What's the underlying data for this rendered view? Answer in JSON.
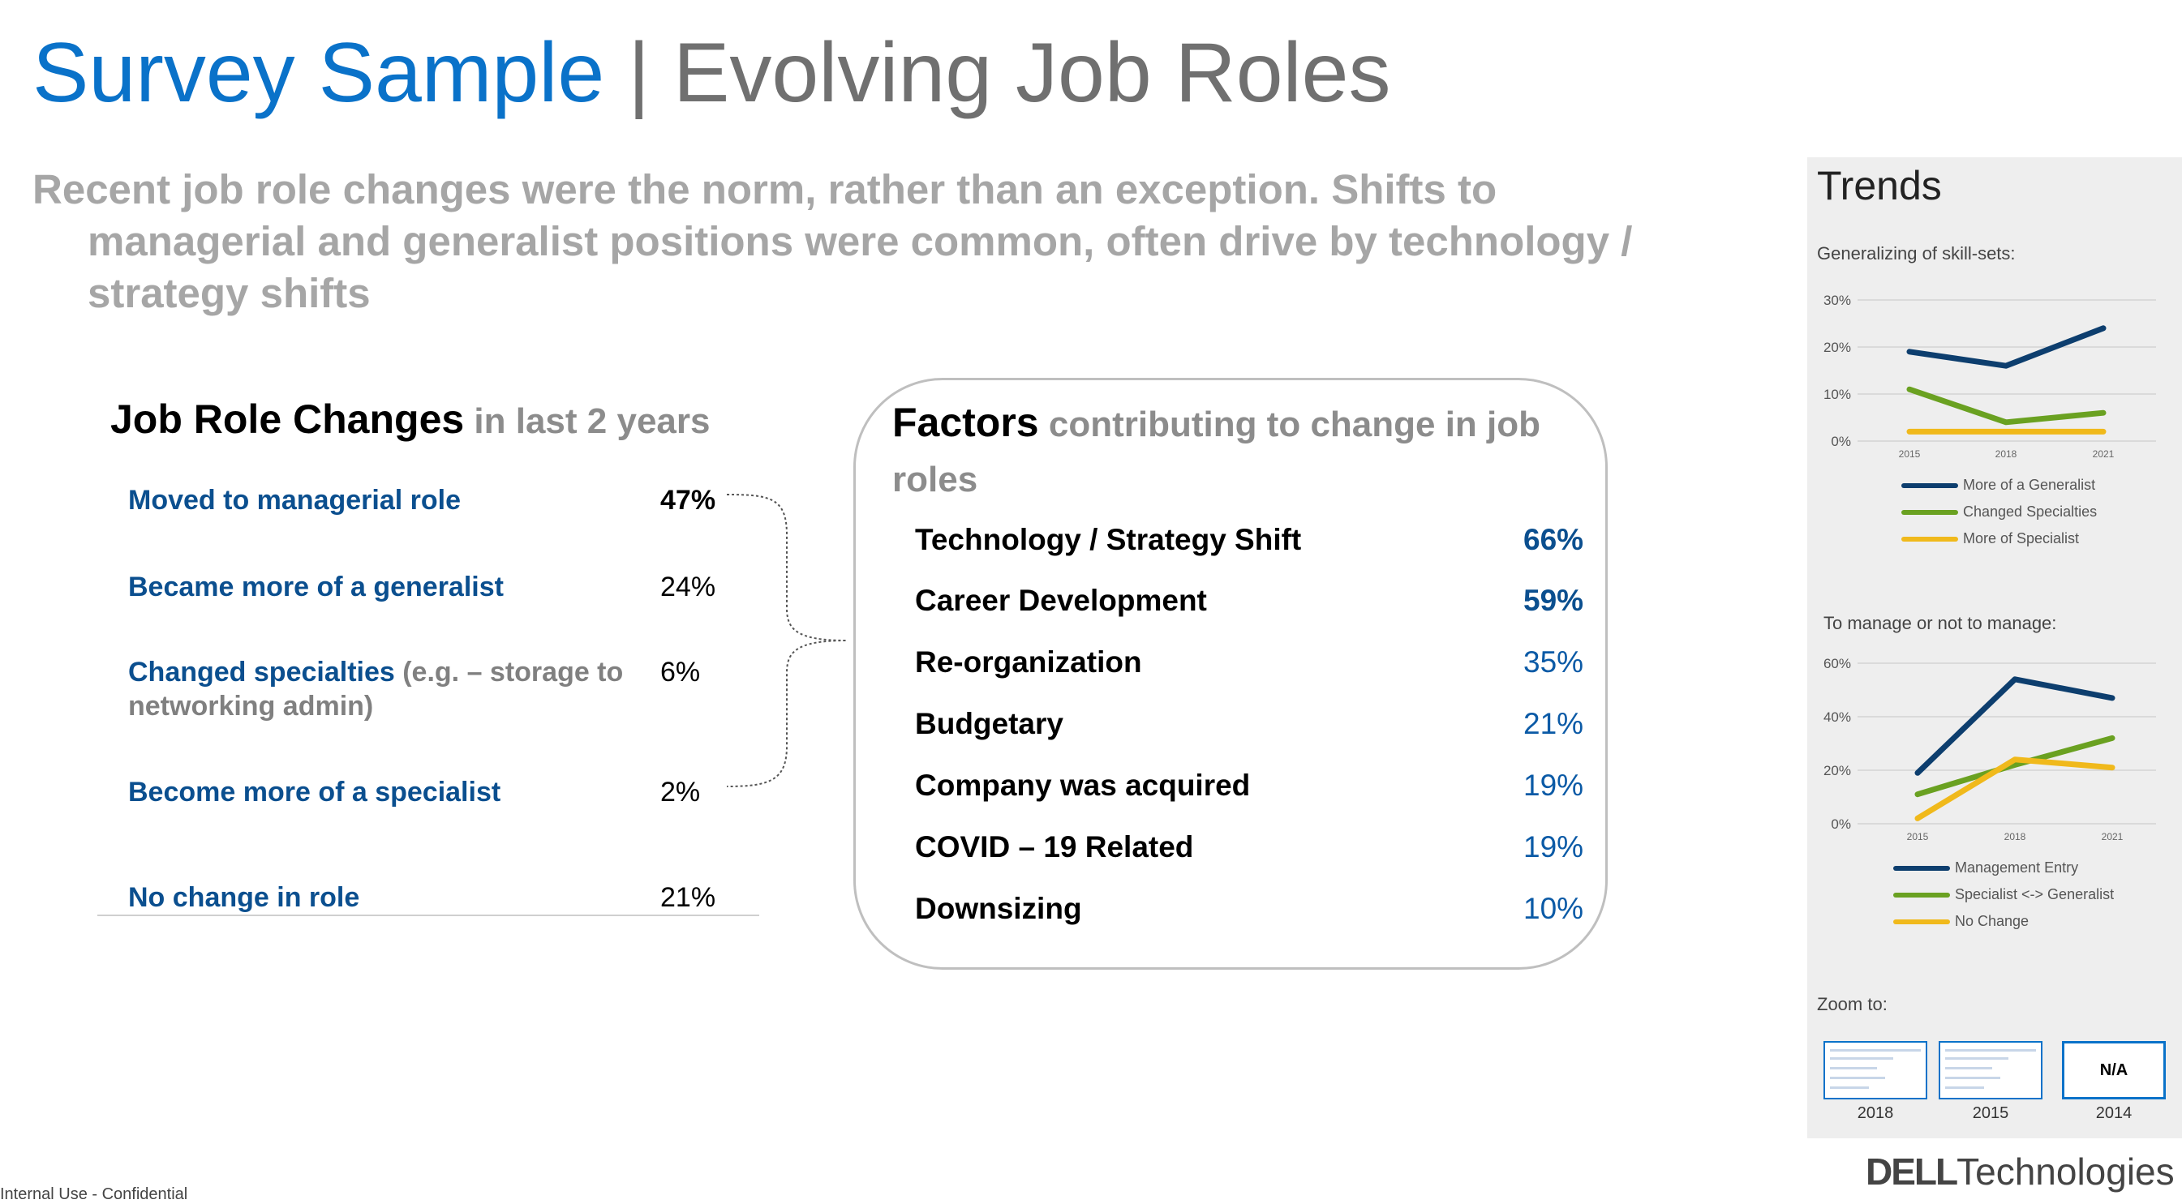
{
  "title": {
    "part1": "Survey Sample",
    "separator": " | ",
    "part2": "Evolving Job Roles"
  },
  "subtitle": {
    "line1": "Recent job role changes were the norm, rather than an exception.  Shifts to",
    "line2": "managerial and generalist positions were common, often drive by technology /",
    "line3": "strategy shifts"
  },
  "job_role_changes": {
    "heading": "Job Role Changes",
    "heading_suffix": " in last 2 years",
    "items": [
      {
        "label": "Moved to managerial role",
        "note": "",
        "value": "47%"
      },
      {
        "label": "Became more of a generalist",
        "note": "",
        "value": "24%"
      },
      {
        "label": "Changed specialties",
        "note": " (e.g. – storage to networking admin)",
        "value": "6%"
      },
      {
        "label": "Become more of a specialist",
        "note": "",
        "value": "2%"
      },
      {
        "label": "No change in role",
        "note": "",
        "value": "21%"
      }
    ]
  },
  "factors": {
    "heading": "Factors",
    "heading_suffix": " contributing to change in job roles",
    "items": [
      {
        "label": "Technology / Strategy Shift",
        "value": "66%"
      },
      {
        "label": "Career Development",
        "value": "59%"
      },
      {
        "label": "Re-organization",
        "value": "35%"
      },
      {
        "label": "Budgetary",
        "value": "21%"
      },
      {
        "label": "Company was acquired",
        "value": "19%"
      },
      {
        "label": "COVID – 19 Related",
        "value": "19%"
      },
      {
        "label": "Downsizing",
        "value": "10%"
      }
    ]
  },
  "trends": {
    "title": "Trends",
    "colors": {
      "navy": "#0d3e6e",
      "green": "#6aa121",
      "yellow": "#f0b91b"
    },
    "zoom": {
      "label": "Zoom to:",
      "thumbs": [
        {
          "year": "2018",
          "content": ""
        },
        {
          "year": "2015",
          "content": ""
        },
        {
          "year": "2014",
          "content": "N/A"
        }
      ]
    }
  },
  "chart_data": [
    {
      "type": "line",
      "title": "Generalizing of skill-sets:",
      "x": [
        "2015",
        "2018",
        "2021"
      ],
      "yticks": [
        "0%",
        "10%",
        "20%",
        "30%"
      ],
      "ylim": [
        0,
        30
      ],
      "series": [
        {
          "name": "More of a Generalist",
          "color": "#0d3e6e",
          "values": [
            19,
            16,
            24
          ]
        },
        {
          "name": "Changed Specialties",
          "color": "#6aa121",
          "values": [
            11,
            4,
            6
          ]
        },
        {
          "name": "More of Specialist",
          "color": "#f0b91b",
          "values": [
            2,
            2,
            2
          ]
        }
      ],
      "legend": "bottom"
    },
    {
      "type": "line",
      "title": "To manage or not to manage:",
      "x": [
        "2015",
        "2018",
        "2021"
      ],
      "yticks": [
        "0%",
        "20%",
        "40%",
        "60%"
      ],
      "ylim": [
        0,
        60
      ],
      "series": [
        {
          "name": "Management Entry",
          "color": "#0d3e6e",
          "values": [
            19,
            54,
            47
          ]
        },
        {
          "name": "Specialist <-> Generalist",
          "color": "#6aa121",
          "values": [
            11,
            22,
            32
          ]
        },
        {
          "name": "No Change",
          "color": "#f0b91b",
          "values": [
            2,
            24,
            21
          ]
        }
      ],
      "legend": "bottom"
    }
  ],
  "footer": {
    "left": "Internal Use - Confidential"
  },
  "logo": {
    "part1": "DELL",
    "part2": "Technologies"
  }
}
